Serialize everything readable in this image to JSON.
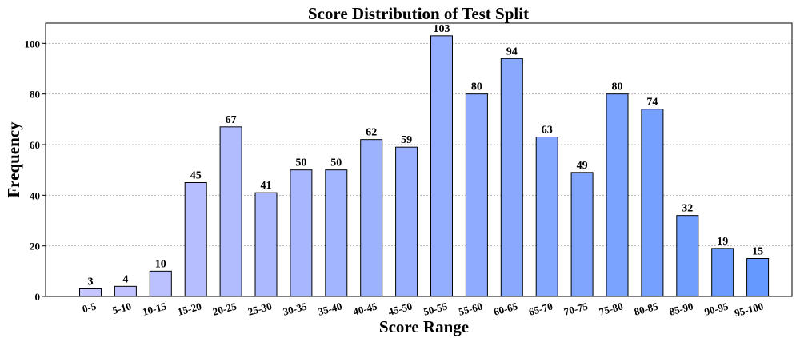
{
  "chart_data": {
    "type": "bar",
    "title": "Score Distribution of Test Split",
    "x_label": "Score Range",
    "y_label": "Frequency",
    "categories": [
      "0-5",
      "5-10",
      "10-15",
      "15-20",
      "20-25",
      "25-30",
      "30-35",
      "35-40",
      "40-45",
      "45-50",
      "50-55",
      "55-60",
      "60-65",
      "65-70",
      "70-75",
      "75-80",
      "80-85",
      "85-90",
      "90-95",
      "95-100"
    ],
    "values": [
      3,
      4,
      10,
      45,
      67,
      41,
      50,
      50,
      62,
      59,
      103,
      80,
      94,
      63,
      49,
      80,
      74,
      32,
      19,
      15
    ],
    "colors": [
      "#c5c5ff",
      "#c0c3ff",
      "#bbc0ff",
      "#b6beff",
      "#b1bcff",
      "#acb9ff",
      "#a7b7ff",
      "#a2b5ff",
      "#9db2ff",
      "#98b0ff",
      "#93aeff",
      "#8eabff",
      "#89a9ff",
      "#84a7ff",
      "#7fa5ff",
      "#7aa2ff",
      "#75a0ff",
      "#709eff",
      "#6b9bff",
      "#6699ff"
    ],
    "ylim": [
      0,
      108
    ],
    "yticks": [
      0,
      20,
      40,
      60,
      80,
      100
    ],
    "grid": true
  }
}
